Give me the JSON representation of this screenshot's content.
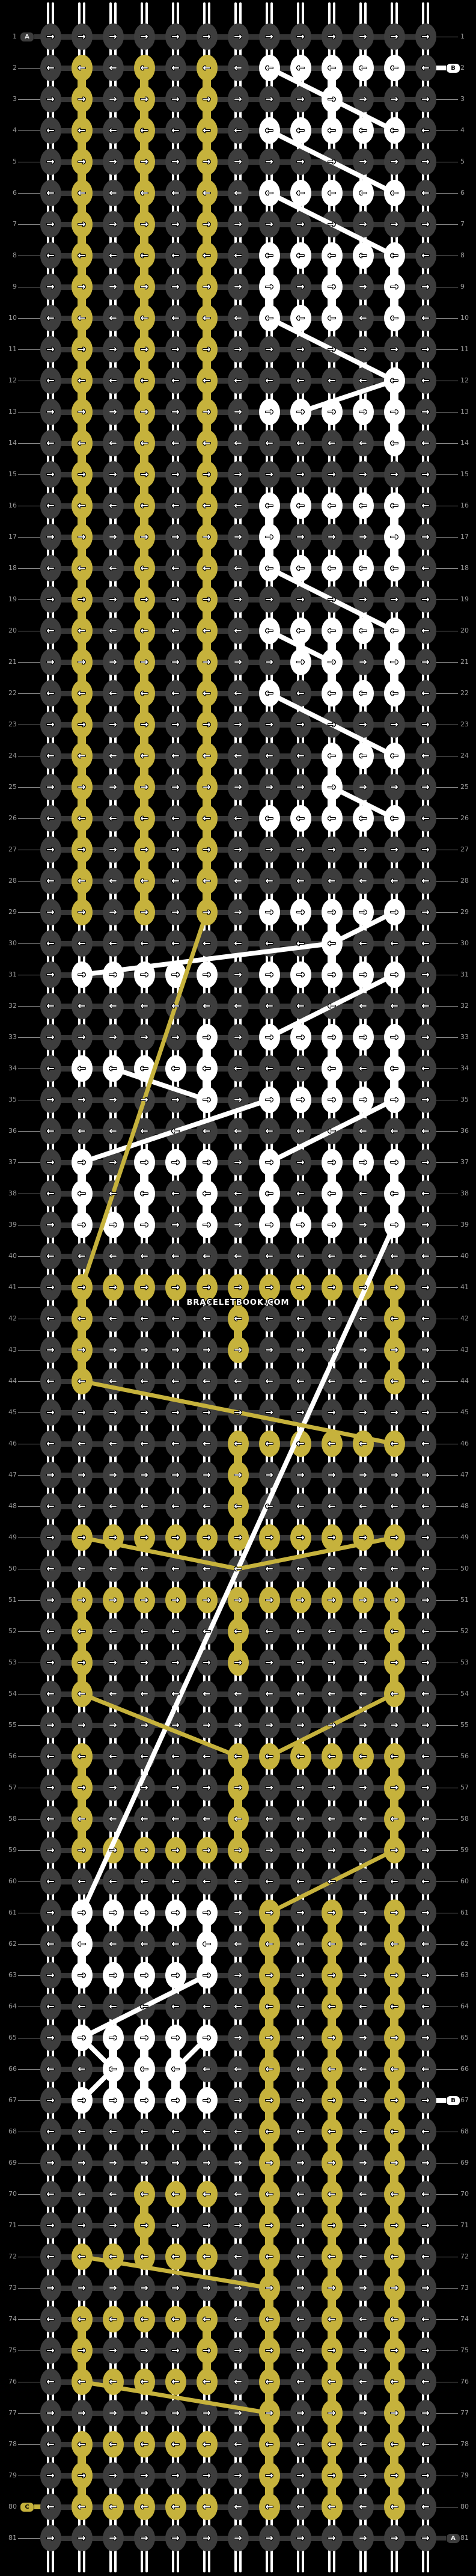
{
  "watermark": {
    "text": "BRACELETBOOK.COM"
  },
  "colors": {
    "background": "#000000",
    "dark_knot": "#3d3d3d",
    "yellow_knot": "#c6b23c",
    "white_knot": "#ffffff",
    "connector_dark": "#353535",
    "row_number_gray": "#9a9a9a",
    "guide_line_gray": "#8a8a8a"
  },
  "chart_data": {
    "type": "knot-grid",
    "rows": 81,
    "cols": 13,
    "row_numbers": "1 to 81 shown on both left and right sides",
    "legend": {
      "D": "dark knot",
      "Y": "yellow knot",
      "W": "white knot"
    },
    "arrows": {
      "odd": "→",
      "even": "←"
    },
    "grid": [
      "DDDDDDDDDDDDD",
      "DYDYDYDWWWWWD",
      "DYDYDYDDDWDDD",
      "DYDYDYDWWWWWD",
      "DYDYDYDDDDDDD",
      "DYDYDYDWWWWWD",
      "DYDYDYDDDDDDD",
      "DYDYDYDWWWWWD",
      "DYDYDYDWDWDWD",
      "DYDYDYDWWWDWD",
      "DYDYDYDDDDDDD",
      "DYDYDYDDDDDWD",
      "DYDYDYDWWWWWD",
      "DYDYDYDDDDDWD",
      "DYDYDYDDDDDDD",
      "DYDYDYDWWWWWD",
      "DYDYDYDWDDDWD",
      "DYDYDYDWWWWWD",
      "DYDYDYDDDDDDD",
      "DYDYDYDWWWWWD",
      "DYDYDYDDWWDWD",
      "DYDYDYDWDWWWD",
      "DYDYDYDDDDDDD",
      "DYDYDYDDDWWWD",
      "DYDYDYDDDWDDD",
      "DYDYDYDWWWWWD",
      "DYDYDYDDDDDDD",
      "DYDYDYDDDDDDD",
      "DYDYDYDWWWWWD",
      "DDDDDDDDDWDDD",
      "DWWWWWDWWWWWD",
      "DDDDDDDDDDDDD",
      "DDDDDWDWWWWWD",
      "DWWWWWDDDWDWD",
      "DDDDDWDWWWWWD",
      "DDDDDDDDDDDDD",
      "DWDWWWDWDWWWD",
      "DWDWDWDWDWDWD",
      "DWWWDWDWWWDWD",
      "DDDDDDDDDDDDD",
      "DYYYYYYYYYYYD",
      "DYDDDDYDDDDYD",
      "DYDDDDYDDDDYD",
      "DYDDDDDDDDDYD",
      "DDDDDDDDDDDDD",
      "DDDDDDYYYYYYD",
      "DDDDDDYDDDDDD",
      "DDDDDDYDDDDDD",
      "DYYYYYYYYYYYD",
      "DDDDDDDDDDDDD",
      "DYYYYYYYYYYYD",
      "DYDDDDYDDDDYD",
      "DYDDDDYDDDDYD",
      "DYDDDDDDDDDYD",
      "DDDDDDDDDDDDD",
      "DYDDDDYYYYYYD",
      "DYDDDDYDDDDYD",
      "DYDDDDYDDDDYD",
      "DYYYYYYDDDDYD",
      "DDDDDDDDDDDDD",
      "DWWWWWDYDYDYD",
      "DWDDDWDYDYDYD",
      "DWWWWWDYDYDYD",
      "DDDDDDDYDYDYD",
      "DWWWWWDYDYDYD",
      "DDWWWDDYDYDYD",
      "DWWWWWDYDYDYD",
      "DDDDDDDYDYDYD",
      "DDDDDDDYDYDYD",
      "DDDYYYDYDYDYD",
      "DDDYDDDYDYDYD",
      "DYYYYYDYDYDYD",
      "DDDDDDDYDYDYD",
      "DYYYYYDYDYDYD",
      "DYDDDYDYDYDYD",
      "DYYYYYDYDYDYD",
      "DDDDDDDYDYDYD",
      "DYYYYYDYDYDYD",
      "DYDDDDDYDYDYD",
      "DYYYYYDYDYDYD",
      "DDDDDDDDDDDDD"
    ],
    "thread_paths": {
      "white": [
        [
          2,
          8,
          3,
          10
        ],
        [
          3,
          10,
          4,
          12
        ],
        [
          4,
          8,
          6,
          12
        ],
        [
          6,
          8,
          8,
          12
        ],
        [
          10,
          8,
          11,
          10
        ],
        [
          11,
          10,
          12,
          12
        ],
        [
          13,
          9,
          12,
          12
        ],
        [
          18,
          8,
          19,
          10
        ],
        [
          19,
          10,
          20,
          12
        ],
        [
          20,
          8,
          21,
          10
        ],
        [
          22,
          8,
          23,
          10
        ],
        [
          23,
          10,
          24,
          12
        ],
        [
          25,
          10,
          26,
          12
        ],
        [
          31,
          2,
          30,
          10
        ],
        [
          30,
          10,
          29,
          12
        ],
        [
          33,
          8,
          31,
          12
        ],
        [
          34,
          3,
          35,
          6
        ],
        [
          37,
          2,
          35,
          8
        ],
        [
          37,
          8,
          35,
          12
        ],
        [
          39,
          12,
          61,
          2
        ],
        [
          63,
          6,
          65,
          2
        ],
        [
          65,
          2,
          66,
          3
        ],
        [
          66,
          3,
          67,
          2
        ],
        [
          66,
          5,
          65,
          6
        ]
      ],
      "yellow": [
        [
          29,
          6,
          41,
          2
        ],
        [
          44,
          2,
          46,
          12
        ],
        [
          49,
          2,
          50,
          7
        ],
        [
          50,
          7,
          49,
          12
        ],
        [
          54,
          2,
          56,
          7
        ],
        [
          56,
          8,
          54,
          12
        ],
        [
          59,
          12,
          61,
          8
        ],
        [
          72,
          2,
          73,
          8
        ],
        [
          76,
          2,
          77,
          8
        ]
      ]
    },
    "labels": [
      {
        "row": 1,
        "side": "left",
        "text": "A",
        "style": "dark"
      },
      {
        "row": 2,
        "side": "right",
        "text": "B",
        "style": "white"
      },
      {
        "row": 67,
        "side": "right",
        "text": "B",
        "style": "white"
      },
      {
        "row": 80,
        "side": "left",
        "text": "C",
        "style": "yellow"
      },
      {
        "row": 81,
        "side": "right",
        "text": "A",
        "style": "dark"
      }
    ]
  }
}
